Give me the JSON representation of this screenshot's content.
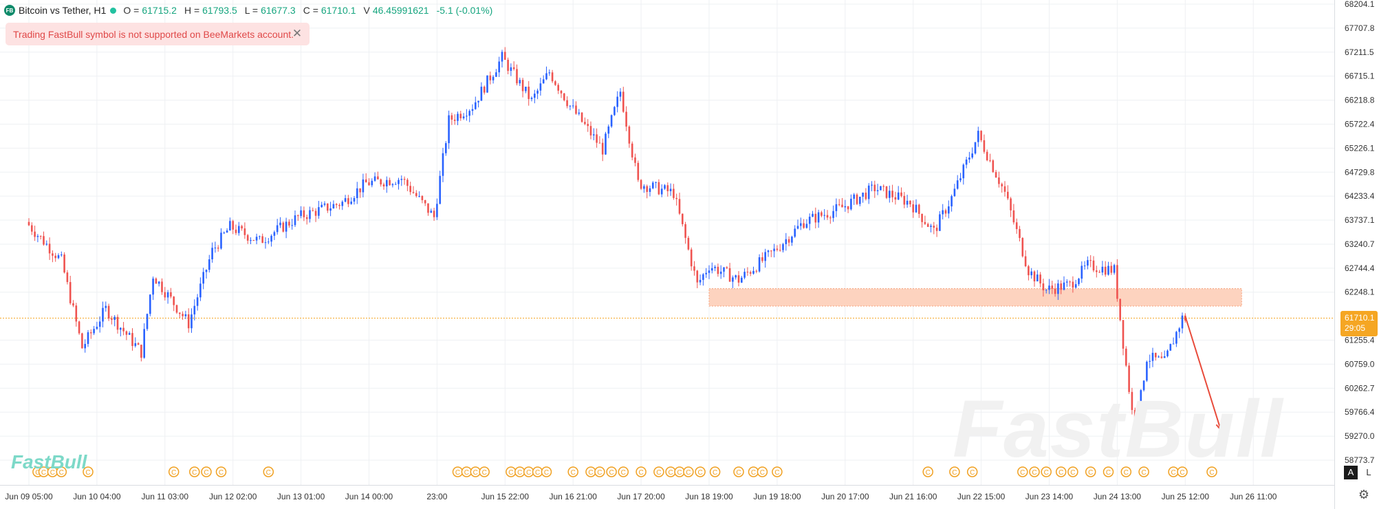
{
  "header": {
    "logo_text": "FB",
    "symbol": "Bitcoin vs Tether, H1",
    "o_key": "O =",
    "o_val": "61715.2",
    "h_key": "H =",
    "h_val": "61793.5",
    "l_key": "L =",
    "l_val": "61677.3",
    "c_key": "C =",
    "c_val": "61710.1",
    "v_key": "V",
    "v_val": "46.45991621",
    "change": "-5.1 (-0.01%)"
  },
  "alert": {
    "message": "Trading FastBull symbol is not supported on BeeMarkets account.",
    "close_icon": "close-icon"
  },
  "price_badge": {
    "price": "61710.1",
    "countdown": "29:05"
  },
  "controls": {
    "auto_label": "A",
    "log_label": "L",
    "settings_icon": "gear-icon"
  },
  "watermark": {
    "text": "FastBull",
    "small_text": "FastBull"
  },
  "colors": {
    "up": "#2962ff",
    "down": "#ef5350",
    "zone": "#fdd3bf",
    "price_line": "#f5a623",
    "event": "#f0a020",
    "arrow": "#e84a3a"
  },
  "chart_data": {
    "type": "candlestick",
    "y_ticks": [
      "68204.1",
      "67707.8",
      "67211.5",
      "66715.1",
      "66218.8",
      "65722.4",
      "65226.1",
      "64729.8",
      "64233.4",
      "63737.1",
      "63240.7",
      "62744.4",
      "62248.1",
      "61255.4",
      "60759.0",
      "60262.7",
      "59766.4",
      "59270.0",
      "58773.7"
    ],
    "ylim": [
      58773.7,
      68204.1
    ],
    "x_labels": [
      "Jun 09 05:00",
      "Jun 10 04:00",
      "Jun 11 03:00",
      "Jun 12 02:00",
      "Jun 13 01:00",
      "Jun 14 00:00",
      "23:00",
      "Jun 15 22:00",
      "Jun 16 21:00",
      "Jun 17 20:00",
      "Jun 18 19:00",
      "Jun 19 18:00",
      "Jun 20 17:00",
      "Jun 21 16:00",
      "Jun 22 15:00",
      "Jun 23 14:00",
      "Jun 24 13:00",
      "Jun 25 12:00",
      "Jun 26 11:00"
    ],
    "last_price": 61710.1,
    "zone": {
      "top": 62320,
      "bottom": 61960,
      "from": "Jun 18 19:00",
      "to": "Jun 25 12:00"
    },
    "path_points": [
      {
        "x": "Jun 09 05:00",
        "y": 63700
      },
      {
        "x": "Jun 09 17:00",
        "y": 62900
      },
      {
        "x": "Jun 10 00:00",
        "y": 61100
      },
      {
        "x": "Jun 10 08:00",
        "y": 61900
      },
      {
        "x": "Jun 10 20:00",
        "y": 61000
      },
      {
        "x": "Jun 11 00:00",
        "y": 62600
      },
      {
        "x": "Jun 11 12:00",
        "y": 61600
      },
      {
        "x": "Jun 11 20:00",
        "y": 63100
      },
      {
        "x": "Jun 12 02:00",
        "y": 63600
      },
      {
        "x": "Jun 12 12:00",
        "y": 63300
      },
      {
        "x": "Jun 13 01:00",
        "y": 63800
      },
      {
        "x": "Jun 13 16:00",
        "y": 64100
      },
      {
        "x": "Jun 14 00:00",
        "y": 64500
      },
      {
        "x": "Jun 14 12:00",
        "y": 64600
      },
      {
        "x": "Jun 14 23:00",
        "y": 63800
      },
      {
        "x": "Jun 15 04:00",
        "y": 65800
      },
      {
        "x": "Jun 15 12:00",
        "y": 66100
      },
      {
        "x": "Jun 15 22:00",
        "y": 67100
      },
      {
        "x": "Jun 16 08:00",
        "y": 66200
      },
      {
        "x": "Jun 16 14:00",
        "y": 66800
      },
      {
        "x": "Jun 16 21:00",
        "y": 66100
      },
      {
        "x": "Jun 17 08:00",
        "y": 65200
      },
      {
        "x": "Jun 17 14:00",
        "y": 66400
      },
      {
        "x": "Jun 17 20:00",
        "y": 64500
      },
      {
        "x": "Jun 18 08:00",
        "y": 64300
      },
      {
        "x": "Jun 18 16:00",
        "y": 62400
      },
      {
        "x": "Jun 18 20:00",
        "y": 62800
      },
      {
        "x": "Jun 19 06:00",
        "y": 62500
      },
      {
        "x": "Jun 19 18:00",
        "y": 63100
      },
      {
        "x": "Jun 20 04:00",
        "y": 63700
      },
      {
        "x": "Jun 20 17:00",
        "y": 64000
      },
      {
        "x": "Jun 21 04:00",
        "y": 64400
      },
      {
        "x": "Jun 21 16:00",
        "y": 64100
      },
      {
        "x": "Jun 22 00:00",
        "y": 63500
      },
      {
        "x": "Jun 22 06:00",
        "y": 64200
      },
      {
        "x": "Jun 22 15:00",
        "y": 65500
      },
      {
        "x": "Jun 23 00:00",
        "y": 64300
      },
      {
        "x": "Jun 23 08:00",
        "y": 62700
      },
      {
        "x": "Jun 23 14:00",
        "y": 62300
      },
      {
        "x": "Jun 23 22:00",
        "y": 62400
      },
      {
        "x": "Jun 24 04:00",
        "y": 62800
      },
      {
        "x": "Jun 24 13:00",
        "y": 62700
      },
      {
        "x": "Jun 24 16:00",
        "y": 61200
      },
      {
        "x": "Jun 24 20:00",
        "y": 59300
      },
      {
        "x": "Jun 25 00:00",
        "y": 60900
      },
      {
        "x": "Jun 25 06:00",
        "y": 60800
      },
      {
        "x": "Jun 25 12:00",
        "y": 61710
      }
    ],
    "arrow": {
      "from": {
        "x": "Jun 25 12:00",
        "y": 61750
      },
      "to": {
        "x": "Jun 26 00:00",
        "y": 59400
      }
    },
    "events": [
      "Jun 09 08:00",
      "Jun 09 10:00",
      "Jun 09 13:00",
      "Jun 09 16:00",
      "Jun 10 01:00",
      "Jun 11 06:00",
      "Jun 11 13:00",
      "Jun 11 17:00",
      "Jun 11 22:00",
      "Jun 12 14:00",
      "Jun 15 06:00",
      "Jun 15 09:00",
      "Jun 15 12:00",
      "Jun 15 15:00",
      "Jun 16 00:00",
      "Jun 16 03:00",
      "Jun 16 06:00",
      "Jun 16 09:00",
      "Jun 16 12:00",
      "Jun 16 21:00",
      "Jun 17 03:00",
      "Jun 17 06:00",
      "Jun 17 10:00",
      "Jun 17 14:00",
      "Jun 17 20:00",
      "Jun 18 02:00",
      "Jun 18 06:00",
      "Jun 18 09:00",
      "Jun 18 12:00",
      "Jun 18 16:00",
      "Jun 18 21:00",
      "Jun 19 05:00",
      "Jun 19 10:00",
      "Jun 19 13:00",
      "Jun 19 18:00",
      "Jun 21 21:00",
      "Jun 22 06:00",
      "Jun 22 12:00",
      "Jun 23 05:00",
      "Jun 23 09:00",
      "Jun 23 13:00",
      "Jun 23 18:00",
      "Jun 23 22:00",
      "Jun 24 04:00",
      "Jun 24 10:00",
      "Jun 24 16:00",
      "Jun 24 22:00",
      "Jun 25 08:00",
      "Jun 25 11:00",
      "Jun 25 21:00"
    ],
    "event_glyph": "C",
    "grid": true
  }
}
